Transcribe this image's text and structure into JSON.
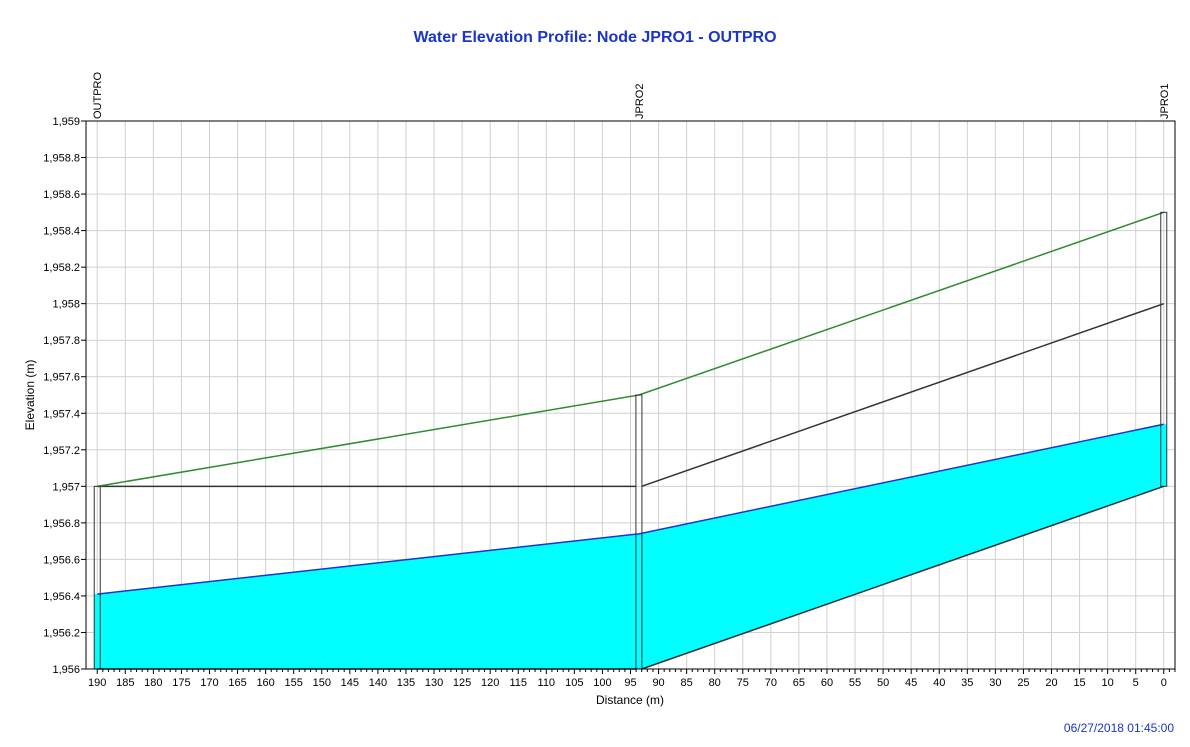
{
  "chart_data": {
    "type": "area",
    "title": "Water Elevation Profile: Node JPRO1 - OUTPRO",
    "xlabel": "Distance (m)",
    "ylabel": "Elevation (m)",
    "xlim": [
      192,
      -2
    ],
    "ylim": [
      1956,
      1959
    ],
    "x_major_ticks": [
      190,
      185,
      180,
      175,
      170,
      165,
      160,
      155,
      150,
      145,
      140,
      135,
      130,
      125,
      120,
      115,
      110,
      105,
      100,
      95,
      90,
      85,
      80,
      75,
      70,
      65,
      60,
      55,
      50,
      45,
      40,
      35,
      30,
      25,
      20,
      15,
      10,
      5,
      0
    ],
    "x_tick_labels": [
      "190",
      "185",
      "180",
      "175",
      "170",
      "165",
      "160",
      "155",
      "150",
      "145",
      "140",
      "135",
      "130",
      "125",
      "120",
      "115",
      "110",
      "105",
      "100",
      "95",
      "90",
      "85",
      "80",
      "75",
      "70",
      "65",
      "60",
      "55",
      "50",
      "45",
      "40",
      "35",
      "30",
      "25",
      "20",
      "15",
      "10",
      "5",
      "0"
    ],
    "y_major_ticks": [
      1956,
      1956.2,
      1956.4,
      1956.6,
      1956.8,
      1957,
      1957.2,
      1957.4,
      1957.6,
      1957.8,
      1958,
      1958.2,
      1958.4,
      1958.6,
      1958.8,
      1959
    ],
    "y_tick_labels": [
      "1,956",
      "1,956.2",
      "1,956.4",
      "1,956.6",
      "1,956.8",
      "1,957",
      "1,957.2",
      "1,957.4",
      "1,957.6",
      "1,957.8",
      "1,958",
      "1,958.2",
      "1,958.4",
      "1,958.6",
      "1,958.8",
      "1,959"
    ],
    "grid": true,
    "nodes": [
      {
        "name": "OUTPRO",
        "x": 190,
        "invert": 1956.0,
        "ground": 1957.0
      },
      {
        "name": "JPRO2",
        "x": 93.5,
        "invert": 1956.0,
        "ground": 1957.5
      },
      {
        "name": "JPRO1",
        "x": 0,
        "invert": 1957.0,
        "ground": 1958.5
      }
    ],
    "conduits": [
      {
        "from_x": 190,
        "to_x": 94,
        "bottom": [
          1956.0,
          1956.0
        ],
        "crown": [
          1957.0,
          1957.0
        ]
      },
      {
        "from_x": 93,
        "to_x": 0,
        "bottom": [
          1956.0,
          1957.0
        ],
        "crown": [
          1957.0,
          1958.0
        ]
      }
    ],
    "water_surface": {
      "x": [
        190,
        93.5,
        0
      ],
      "y": [
        1956.41,
        1956.74,
        1957.34
      ]
    },
    "ground_line": {
      "x": [
        190,
        93.5,
        0
      ],
      "y": [
        1957.0,
        1957.5,
        1958.5
      ]
    },
    "colors": {
      "water": "#00ffff",
      "water_line": "#1a35c8",
      "ground": "#2e8b2e",
      "conduit": "#333333",
      "grid": "#d0d0d0",
      "title": "#1a35c8"
    }
  },
  "timestamp": "06/27/2018 01:45:00"
}
